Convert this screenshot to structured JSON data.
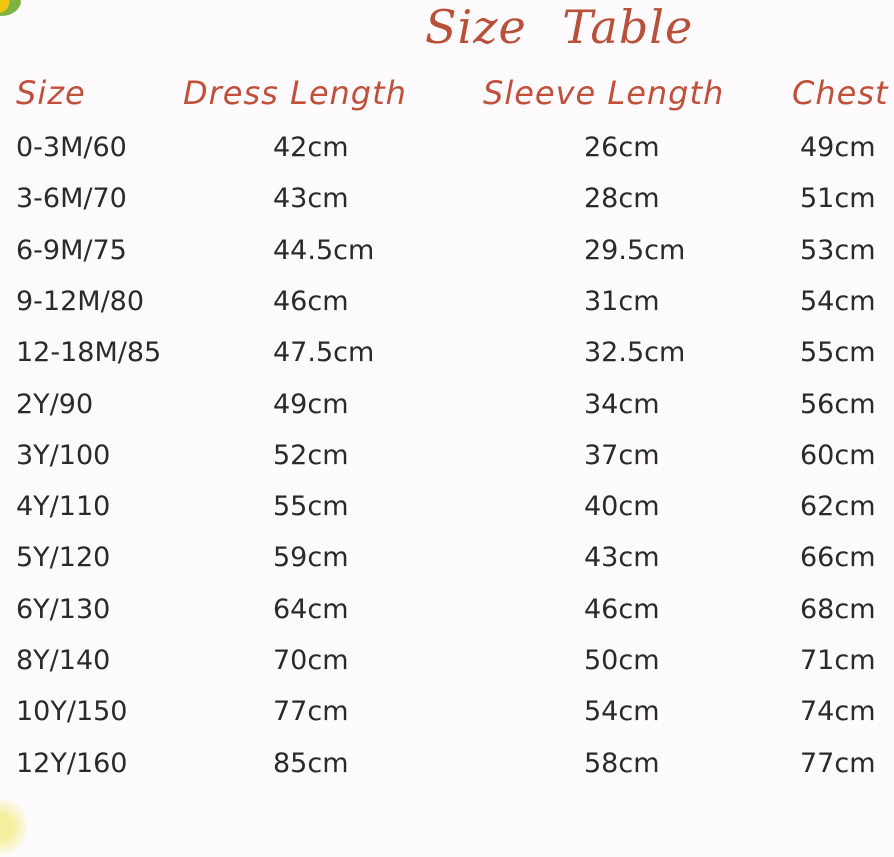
{
  "title": "Size Table",
  "headers": [
    "Size",
    "Dress Length",
    "Sleeve Length",
    "Chest"
  ],
  "rows": [
    [
      "0-3M/60",
      "42cm",
      "26cm",
      "49cm"
    ],
    [
      "3-6M/70",
      "43cm",
      "28cm",
      "51cm"
    ],
    [
      "6-9M/75",
      "44.5cm",
      "29.5cm",
      "53cm"
    ],
    [
      "9-12M/80",
      "46cm",
      "31cm",
      "54cm"
    ],
    [
      "12-18M/85",
      "47.5cm",
      "32.5cm",
      "55cm"
    ],
    [
      "2Y/90",
      "49cm",
      "34cm",
      "56cm"
    ],
    [
      "3Y/100",
      "52cm",
      "37cm",
      "60cm"
    ],
    [
      "4Y/110",
      "55cm",
      "40cm",
      "62cm"
    ],
    [
      "5Y/120",
      "59cm",
      "43cm",
      "66cm"
    ],
    [
      "6Y/130",
      "64cm",
      "46cm",
      "68cm"
    ],
    [
      "8Y/140",
      "70cm",
      "50cm",
      "71cm"
    ],
    [
      "10Y/150",
      "77cm",
      "54cm",
      "74cm"
    ],
    [
      "12Y/160",
      "85cm",
      "58cm",
      "77cm"
    ]
  ],
  "colors": {
    "heading": "#c0503a",
    "text": "#2a2a2a",
    "background": "#fdfbfd"
  }
}
